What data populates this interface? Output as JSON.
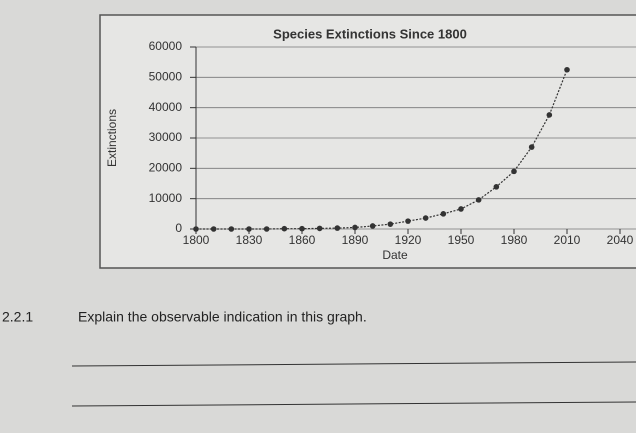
{
  "chart_data": {
    "type": "line",
    "title": "Species Extinctions Since 1800",
    "x_label": "Date",
    "y_label": "Extinctions",
    "x": [
      1800,
      1810,
      1820,
      1830,
      1840,
      1850,
      1860,
      1870,
      1880,
      1890,
      1900,
      1910,
      1920,
      1930,
      1940,
      1950,
      1960,
      1970,
      1980,
      1990,
      2000,
      2010
    ],
    "series": [
      {
        "name": "Extinctions",
        "color": "#333333",
        "values": [
          0,
          0,
          0,
          0,
          0,
          100,
          100,
          200,
          300,
          500,
          1000,
          1600,
          2600,
          3600,
          5000,
          6600,
          9600,
          13900,
          19000,
          27000,
          37600,
          52500
        ]
      }
    ],
    "xlim": [
      1800,
      2040
    ],
    "xticks": [
      1800,
      1830,
      1860,
      1890,
      1920,
      1950,
      1980,
      2010,
      2040
    ],
    "ylim": [
      0,
      60000
    ],
    "yticks": [
      0,
      10000,
      20000,
      30000,
      40000,
      50000,
      60000
    ],
    "grid": true
  },
  "question": {
    "number": "2.2.1",
    "text": "Explain the observable indication in this graph."
  }
}
